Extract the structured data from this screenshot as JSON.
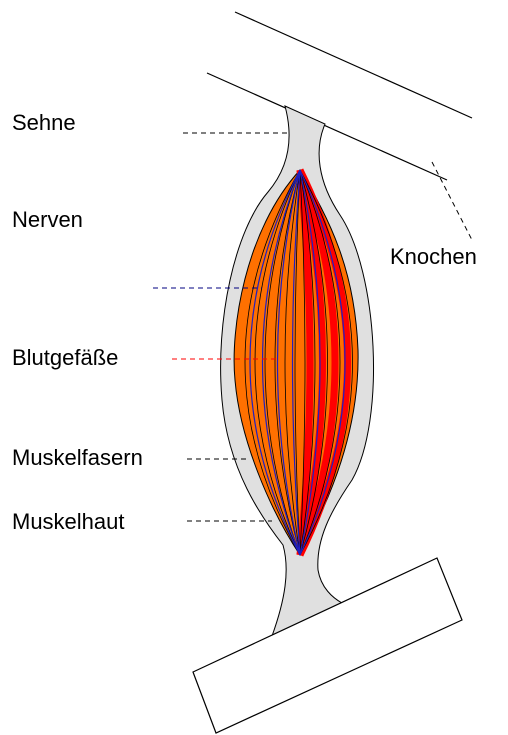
{
  "labels": [
    "Sehne",
    "Nerven",
    "Blutgefäße",
    "Muskelfasern",
    "Muskelhaut",
    "Knochen"
  ]
}
